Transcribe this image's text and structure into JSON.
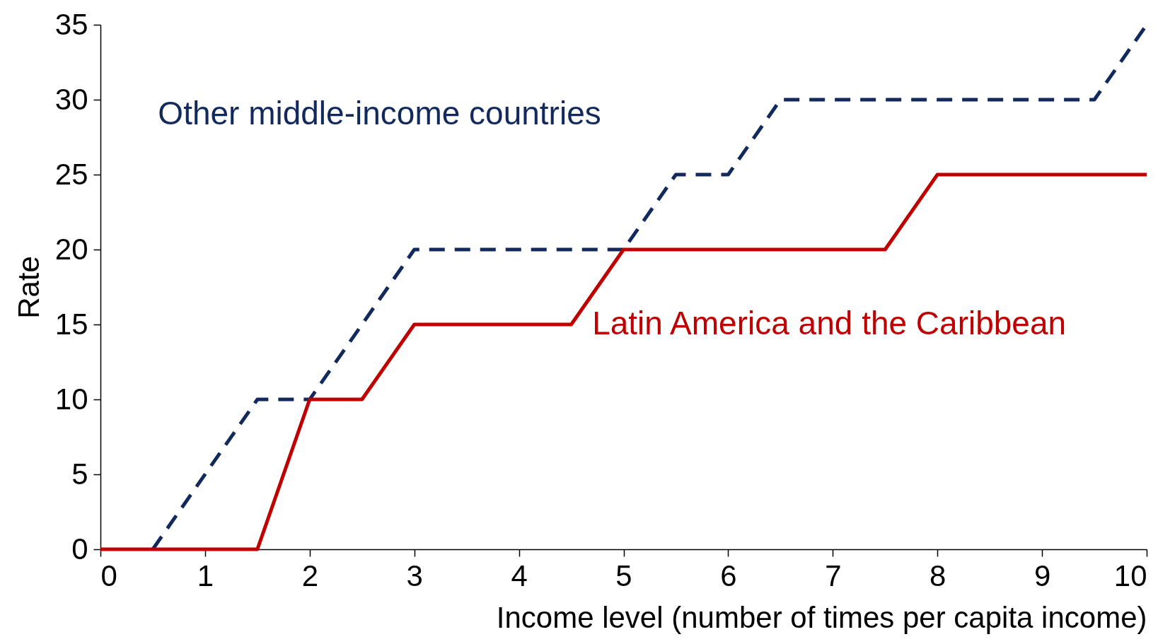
{
  "chart_data": {
    "type": "line",
    "xlabel": "Income level (number of times per capita income)",
    "ylabel": "Rate",
    "xlim": [
      0,
      10
    ],
    "xticks": [
      0,
      1,
      2,
      3,
      4,
      5,
      6,
      7,
      8,
      9,
      10
    ],
    "ylim": [
      0,
      35
    ],
    "yticks": [
      0,
      5,
      10,
      15,
      20,
      25,
      30,
      35
    ],
    "grid": false,
    "legend": false,
    "series": [
      {
        "name": "Other middle-income countries",
        "color": "#12295e",
        "line_style": "dashed",
        "x": [
          0.5,
          1.5,
          2,
          3,
          5,
          5.5,
          6,
          6.5,
          9.5,
          10
        ],
        "values": [
          0,
          10,
          10,
          20,
          20,
          25,
          25,
          30,
          30,
          35
        ]
      },
      {
        "name": "Latin America and the Caribbean",
        "color": "#c00000",
        "line_style": "solid",
        "x": [
          0,
          1.5,
          2,
          2.5,
          3,
          4.5,
          5,
          7.5,
          8,
          10
        ],
        "values": [
          0,
          0,
          10,
          10,
          15,
          15,
          20,
          20,
          25,
          25
        ]
      }
    ]
  }
}
